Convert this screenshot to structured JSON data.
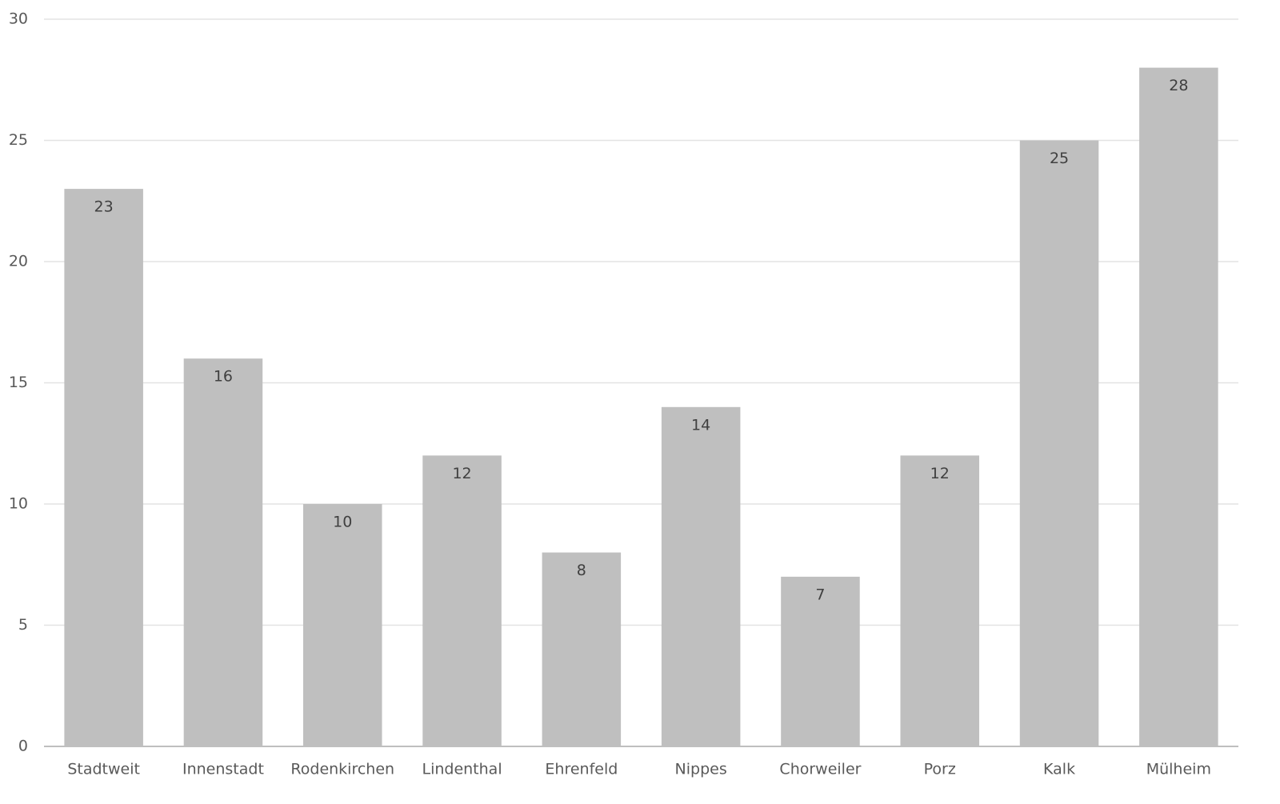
{
  "chart_data": {
    "type": "bar",
    "categories": [
      "Stadtweit",
      "Innenstadt",
      "Rodenkirchen",
      "Lindenthal",
      "Ehrenfeld",
      "Nippes",
      "Chorweiler",
      "Porz",
      "Kalk",
      "Mülheim"
    ],
    "values": [
      23,
      16,
      10,
      12,
      8,
      14,
      7,
      12,
      25,
      28
    ],
    "color": "#bfbfbf",
    "ylim": [
      0,
      30
    ],
    "yticks": [
      0,
      5,
      10,
      15,
      20,
      25,
      30
    ],
    "grid": true
  }
}
